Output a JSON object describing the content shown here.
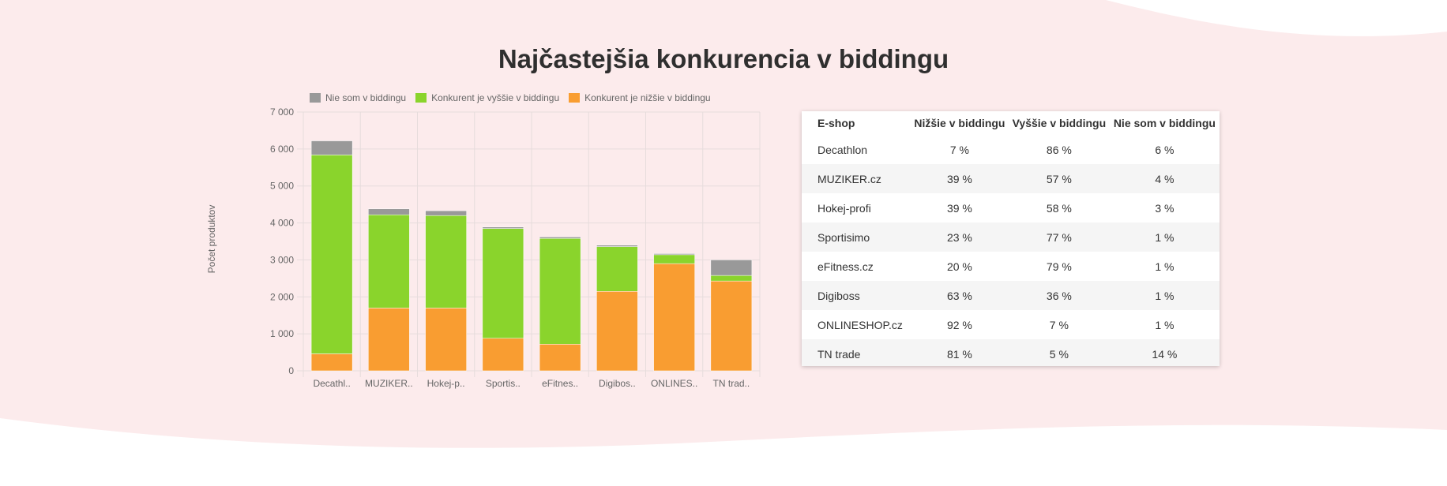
{
  "title": "Najčastejšia konkurencia v biddingu",
  "colors": {
    "background": "#fcebec",
    "not_in_bidding": "#999999",
    "higher": "#8ad42c",
    "lower": "#f99d31"
  },
  "chart_data": {
    "type": "bar",
    "stacked": true,
    "categories": [
      "Decathl..",
      "MUZIKER..",
      "Hokej-p..",
      "Sportis..",
      "eFitnes..",
      "Digibos..",
      "ONLINES..",
      "TN trad.."
    ],
    "series": [
      {
        "name": "Konkurent je nižšie v biddingu",
        "color": "#f99d31",
        "values": [
          460,
          1700,
          1700,
          880,
          720,
          2150,
          2900,
          2430
        ]
      },
      {
        "name": "Konkurent je vyššie v biddingu",
        "color": "#8ad42c",
        "values": [
          5380,
          2520,
          2500,
          2970,
          2860,
          1210,
          240,
          150
        ]
      },
      {
        "name": "Nie som v biddingu",
        "color": "#999999",
        "values": [
          380,
          160,
          130,
          40,
          40,
          40,
          30,
          420
        ]
      }
    ],
    "legend_order": [
      "Nie som v biddingu",
      "Konkurent je vyššie v biddingu",
      "Konkurent je nižšie v biddingu"
    ],
    "legend_position": "top",
    "ylabel": "Počet produktov",
    "xlabel": "",
    "ylim": [
      0,
      7000
    ],
    "yticks": [
      "0",
      "1 000",
      "2 000",
      "3 000",
      "4 000",
      "5 000",
      "6 000",
      "7 000"
    ],
    "grid": true
  },
  "table": {
    "headers": [
      "E-shop",
      "Nižšie v biddingu",
      "Vyššie v biddingu",
      "Nie som v biddingu"
    ],
    "rows": [
      [
        "Decathlon",
        "7 %",
        "86 %",
        "6 %"
      ],
      [
        "MUZIKER.cz",
        "39 %",
        "57 %",
        "4 %"
      ],
      [
        "Hokej-profi",
        "39 %",
        "58 %",
        "3 %"
      ],
      [
        "Sportisimo",
        "23 %",
        "77 %",
        "1 %"
      ],
      [
        "eFitness.cz",
        "20 %",
        "79 %",
        "1 %"
      ],
      [
        "Digiboss",
        "63 %",
        "36 %",
        "1 %"
      ],
      [
        "ONLINESHOP.cz",
        "92 %",
        "7 %",
        "1 %"
      ],
      [
        "TN trade",
        "81 %",
        "5 %",
        "14 %"
      ]
    ]
  }
}
